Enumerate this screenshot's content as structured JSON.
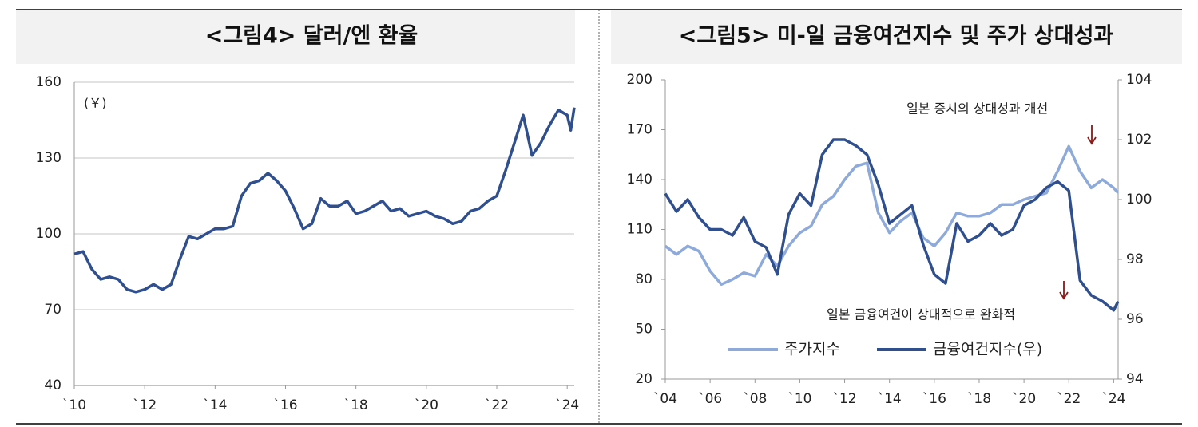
{
  "chart_data": [
    {
      "type": "line",
      "title": "<그림4> 달러/엔 환율",
      "annotations": [
        "(￥)"
      ],
      "color": "#2f4f8f",
      "grid": true,
      "x": [
        2010.0,
        2010.25,
        2010.5,
        2010.75,
        2011.0,
        2011.25,
        2011.5,
        2011.75,
        2012.0,
        2012.25,
        2012.5,
        2012.75,
        2013.0,
        2013.25,
        2013.5,
        2013.75,
        2014.0,
        2014.25,
        2014.5,
        2014.75,
        2015.0,
        2015.25,
        2015.5,
        2015.75,
        2016.0,
        2016.25,
        2016.5,
        2016.75,
        2017.0,
        2017.25,
        2017.5,
        2017.75,
        2018.0,
        2018.25,
        2018.5,
        2018.75,
        2019.0,
        2019.25,
        2019.5,
        2019.75,
        2020.0,
        2020.25,
        2020.5,
        2020.75,
        2021.0,
        2021.25,
        2021.5,
        2021.75,
        2022.0,
        2022.25,
        2022.5,
        2022.75,
        2023.0,
        2023.25,
        2023.5,
        2023.75,
        2024.0,
        2024.1,
        2024.2
      ],
      "values": [
        92,
        93,
        86,
        82,
        83,
        82,
        78,
        77,
        78,
        80,
        78,
        80,
        90,
        99,
        98,
        100,
        102,
        102,
        103,
        115,
        120,
        121,
        124,
        121,
        117,
        110,
        102,
        104,
        114,
        111,
        111,
        113,
        108,
        109,
        111,
        113,
        109,
        110,
        107,
        108,
        109,
        107,
        106,
        104,
        105,
        109,
        110,
        113,
        115,
        125,
        136,
        147,
        131,
        136,
        143,
        149,
        147,
        141,
        150
      ],
      "xlim": [
        2010,
        2024.2
      ],
      "xticks": [
        {
          "value": 2010,
          "label": "`10"
        },
        {
          "value": 2012,
          "label": "`12"
        },
        {
          "value": 2014,
          "label": "`14"
        },
        {
          "value": 2016,
          "label": "`16"
        },
        {
          "value": 2018,
          "label": "`18"
        },
        {
          "value": 2020,
          "label": "`20"
        },
        {
          "value": 2022,
          "label": "`22"
        },
        {
          "value": 2024,
          "label": "`24"
        }
      ],
      "ylim": [
        40,
        160
      ],
      "yticks": [
        40,
        70,
        100,
        130,
        160
      ]
    },
    {
      "type": "line",
      "title": "<그림5> 미-일 금융여건지수 및 주가 상대성과",
      "annotations": [
        "일본 증시의 상대성과 개선",
        "일본 금융여건이 상대적으로 완화적"
      ],
      "grid": false,
      "x": [
        2004.0,
        2004.5,
        2005.0,
        2005.5,
        2006.0,
        2006.5,
        2007.0,
        2007.5,
        2008.0,
        2008.5,
        2009.0,
        2009.5,
        2010.0,
        2010.5,
        2011.0,
        2011.5,
        2012.0,
        2012.5,
        2013.0,
        2013.5,
        2014.0,
        2014.5,
        2015.0,
        2015.5,
        2016.0,
        2016.5,
        2017.0,
        2017.5,
        2018.0,
        2018.5,
        2019.0,
        2019.5,
        2020.0,
        2020.5,
        2021.0,
        2021.5,
        2022.0,
        2022.5,
        2023.0,
        2023.5,
        2024.0,
        2024.2
      ],
      "series": [
        {
          "name": "주가지수",
          "color": "#8eaadb",
          "values": [
            100,
            95,
            100,
            97,
            85,
            77,
            80,
            84,
            82,
            95,
            88,
            100,
            108,
            112,
            125,
            130,
            140,
            148,
            150,
            120,
            108,
            115,
            120,
            105,
            100,
            108,
            120,
            118,
            118,
            120,
            125,
            125,
            128,
            130,
            132,
            145,
            160,
            145,
            135,
            140,
            135,
            132
          ]
        },
        {
          "name": "금융여건지수(우)",
          "color": "#2f4f8f",
          "axis": "y2",
          "values": [
            100.2,
            99.6,
            100,
            99.4,
            99,
            99,
            98.8,
            99.4,
            98.6,
            98.4,
            97.5,
            99.5,
            100.2,
            99.8,
            101.5,
            102,
            102,
            101.8,
            101.5,
            100.5,
            99.2,
            99.5,
            99.8,
            98.5,
            97.5,
            97.2,
            99.2,
            98.6,
            98.8,
            99.2,
            98.8,
            99,
            99.8,
            100,
            100.4,
            100.6,
            100.3,
            97.3,
            96.8,
            96.6,
            96.3,
            96.6
          ]
        }
      ],
      "xlim": [
        2004,
        2024.2
      ],
      "xticks": [
        {
          "value": 2004,
          "label": "`04"
        },
        {
          "value": 2006,
          "label": "`06"
        },
        {
          "value": 2008,
          "label": "`08"
        },
        {
          "value": 2010,
          "label": "`10"
        },
        {
          "value": 2012,
          "label": "`12"
        },
        {
          "value": 2014,
          "label": "`14"
        },
        {
          "value": 2016,
          "label": "`16"
        },
        {
          "value": 2018,
          "label": "`18"
        },
        {
          "value": 2020,
          "label": "`20"
        },
        {
          "value": 2022,
          "label": "`22"
        },
        {
          "value": 2024,
          "label": "`24"
        }
      ],
      "ylim": [
        20,
        200
      ],
      "yticks": [
        20,
        50,
        80,
        110,
        140,
        170,
        200
      ],
      "y2lim": [
        94,
        104
      ],
      "y2ticks": [
        94,
        96,
        98,
        100,
        102,
        104
      ]
    }
  ]
}
